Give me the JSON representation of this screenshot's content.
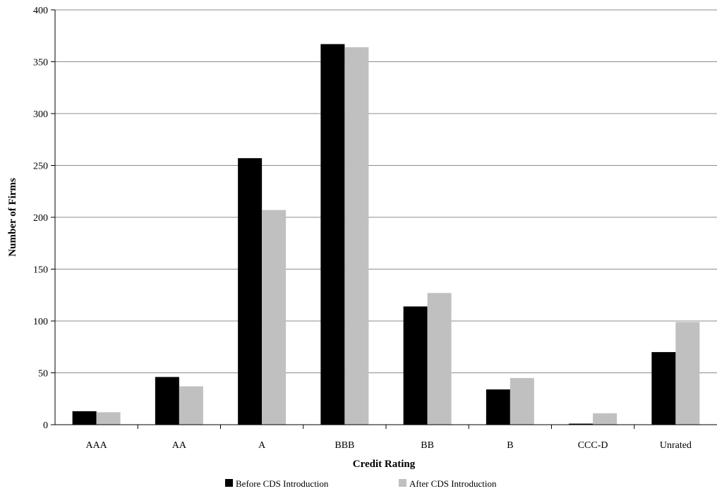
{
  "chart_data": {
    "type": "bar",
    "title": "",
    "xlabel": "Credit Rating",
    "ylabel": "Number of Firms",
    "ylim": [
      0,
      400
    ],
    "yticks": [
      0,
      50,
      100,
      150,
      200,
      250,
      300,
      350,
      400
    ],
    "grid": true,
    "legend_position": "bottom",
    "categories": [
      "AAA",
      "AA",
      "A",
      "BBB",
      "BB",
      "B",
      "CCC-D",
      "Unrated"
    ],
    "series": [
      {
        "name": "Before CDS Introduction",
        "color": "#000000",
        "values": [
          13,
          46,
          257,
          367,
          114,
          34,
          1,
          70
        ]
      },
      {
        "name": "After CDS Introduction",
        "color": "#c0c0c0",
        "values": [
          12,
          37,
          207,
          364,
          127,
          45,
          11,
          99
        ]
      }
    ]
  }
}
